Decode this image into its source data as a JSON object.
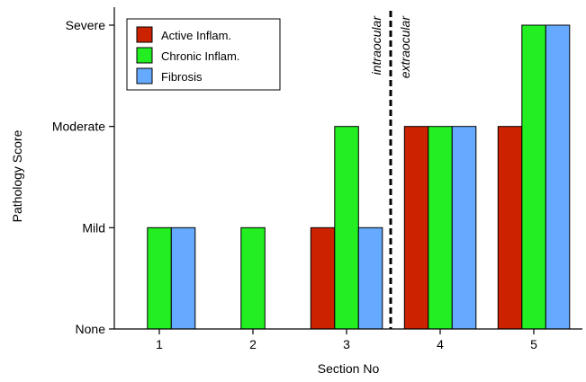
{
  "chart_data": {
    "type": "bar",
    "xlabel": "Section No",
    "ylabel": "Pathology Score",
    "categories": [
      "1",
      "2",
      "3",
      "4",
      "5"
    ],
    "ylim": [
      0,
      3
    ],
    "yticks": [
      {
        "value": 0,
        "label": "None"
      },
      {
        "value": 1,
        "label": "Mild"
      },
      {
        "value": 2,
        "label": "Moderate"
      },
      {
        "value": 3,
        "label": "Severe"
      }
    ],
    "series": [
      {
        "name": "Active Inflam.",
        "color": "#cc2200",
        "values": [
          0,
          0,
          1,
          2,
          2
        ]
      },
      {
        "name": "Chronic Inflam.",
        "color": "#22ee22",
        "values": [
          1,
          1,
          2,
          2,
          3
        ]
      },
      {
        "name": "Fibrosis",
        "color": "#66aaff",
        "values": [
          1,
          0,
          1,
          2,
          3
        ]
      }
    ],
    "legend_position": "top-left",
    "grid": false,
    "annotations": {
      "divider_between_categories": [
        "3",
        "4"
      ],
      "left_label": "intraocular",
      "right_label": "extraocular"
    }
  }
}
